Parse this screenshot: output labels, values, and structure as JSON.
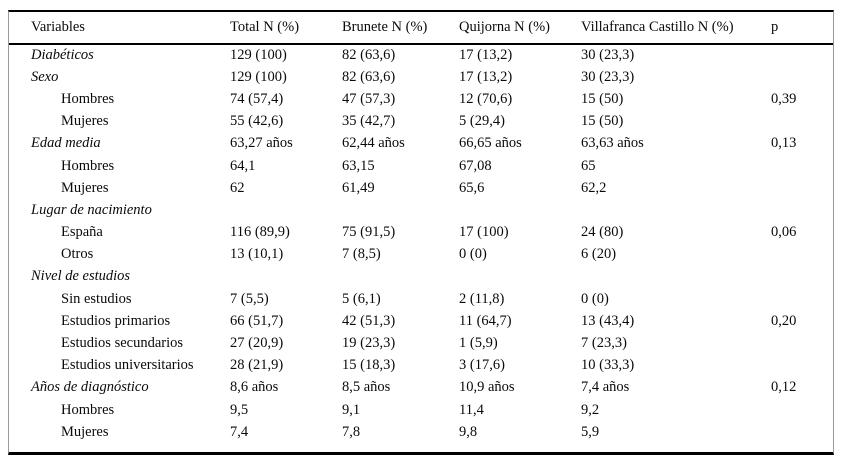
{
  "table": {
    "headers": [
      "Variables",
      "Total N (%)",
      "Brunete N (%)",
      "Quijorna N (%)",
      "Villafranca Castillo N (%)",
      "p"
    ],
    "rows": [
      {
        "label": "Diabéticos",
        "indent": false,
        "cells": [
          "129 (100)",
          "82 (63,6)",
          "17 (13,2)",
          "30 (23,3)",
          ""
        ]
      },
      {
        "label": "Sexo",
        "indent": false,
        "cells": [
          "129 (100)",
          "82 (63,6)",
          "17 (13,2)",
          "30 (23,3)",
          ""
        ]
      },
      {
        "label": "Hombres",
        "indent": true,
        "cells": [
          "74 (57,4)",
          "47 (57,3)",
          "12 (70,6)",
          "15 (50)",
          "0,39"
        ]
      },
      {
        "label": "Mujeres",
        "indent": true,
        "cells": [
          "55 (42,6)",
          "35 (42,7)",
          "5 (29,4)",
          "15 (50)",
          ""
        ]
      },
      {
        "label": "Edad media",
        "indent": false,
        "cells": [
          "63,27 años",
          "62,44 años",
          "66,65 años",
          "63,63 años",
          "0,13"
        ]
      },
      {
        "label": "Hombres",
        "indent": true,
        "cells": [
          "64,1",
          "63,15",
          "67,08",
          "65",
          ""
        ]
      },
      {
        "label": "Mujeres",
        "indent": true,
        "cells": [
          "62",
          "61,49",
          "65,6",
          "62,2",
          ""
        ]
      },
      {
        "label": "Lugar de nacimiento",
        "indent": false,
        "cells": [
          "",
          "",
          "",
          "",
          ""
        ]
      },
      {
        "label": "España",
        "indent": true,
        "cells": [
          "116 (89,9)",
          "75 (91,5)",
          "17 (100)",
          "24 (80)",
          "0,06"
        ]
      },
      {
        "label": "Otros",
        "indent": true,
        "cells": [
          "13 (10,1)",
          "7 (8,5)",
          "0 (0)",
          "6 (20)",
          ""
        ]
      },
      {
        "label": "Nivel de estudios",
        "indent": false,
        "cells": [
          "",
          "",
          "",
          "",
          ""
        ]
      },
      {
        "label": "Sin estudios",
        "indent": true,
        "cells": [
          "7 (5,5)",
          "5 (6,1)",
          "2 (11,8)",
          "0 (0)",
          ""
        ]
      },
      {
        "label": "Estudios primarios",
        "indent": true,
        "cells": [
          "66 (51,7)",
          "42 (51,3)",
          "11 (64,7)",
          "13 (43,4)",
          "0,20"
        ]
      },
      {
        "label": "Estudios secundarios",
        "indent": true,
        "cells": [
          "27 (20,9)",
          "19 (23,3)",
          "1 (5,9)",
          "7 (23,3)",
          ""
        ]
      },
      {
        "label": "Estudios universitarios",
        "indent": true,
        "cells": [
          "28 (21,9)",
          "15 (18,3)",
          "3 (17,6)",
          "10 (33,3)",
          ""
        ]
      },
      {
        "label": "Años de diagnóstico",
        "indent": false,
        "cells": [
          "8,6 años",
          "8,5 años",
          "10,9 años",
          "7,4 años",
          "0,12"
        ]
      },
      {
        "label": "Hombres",
        "indent": true,
        "cells": [
          "9,5",
          "9,1",
          "11,4",
          "9,2",
          ""
        ]
      },
      {
        "label": "Mujeres",
        "indent": true,
        "cells": [
          "7,4",
          "7,8",
          "9,8",
          "5,9",
          ""
        ]
      }
    ]
  }
}
